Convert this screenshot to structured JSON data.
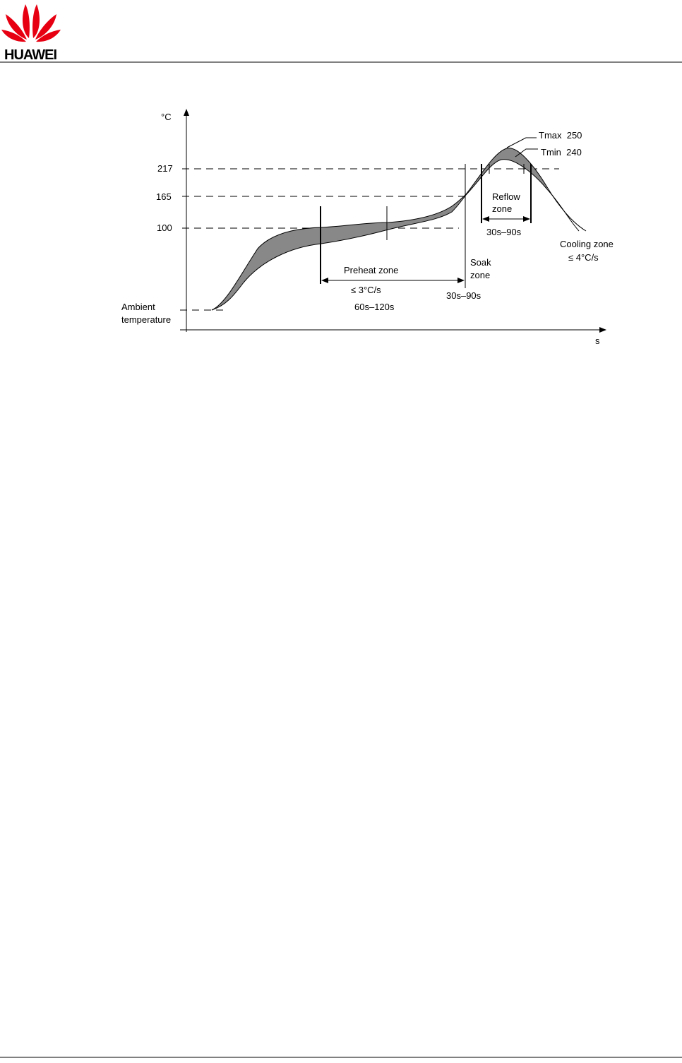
{
  "header": {
    "logo_text": "HUAWEI"
  },
  "diagram": {
    "y_unit": "°C",
    "x_unit": "s",
    "y_levels": [
      "217",
      "165",
      "100"
    ],
    "ambient": [
      "Ambient",
      "temperature"
    ],
    "tmax": "Tmax  250",
    "tmin": "Tmin  240",
    "reflow": {
      "title": [
        "Reflow",
        "zone"
      ],
      "time": "30s–90s"
    },
    "cooling": {
      "title": "Cooling zone",
      "rate": "≤ 4°C/s"
    },
    "preheat": {
      "title": "Preheat zone",
      "rate": "≤ 3°C/s",
      "time": "60s–120s"
    },
    "soak": {
      "title": [
        "Soak",
        "zone"
      ],
      "time": "30s–90s"
    }
  }
}
